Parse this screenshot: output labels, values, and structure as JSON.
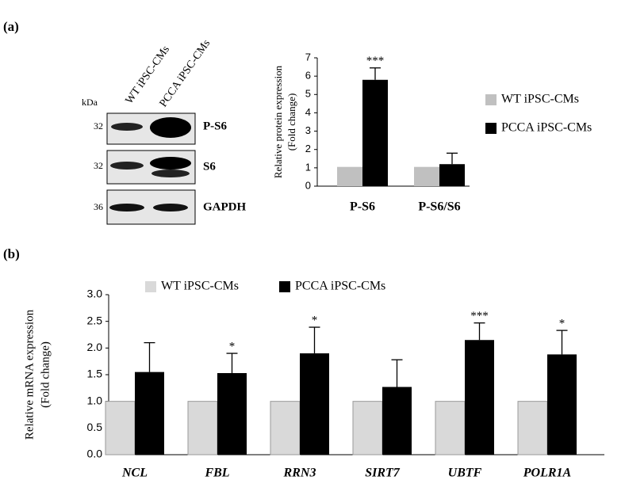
{
  "panel_labels": [
    "(a)",
    "(b)"
  ],
  "blot": {
    "columns": [
      "WT iPSC-CMs",
      "PCCA iPSC-CMs"
    ],
    "unit": "kDa",
    "rows": [
      {
        "kda": "32",
        "label": "P-S6"
      },
      {
        "kda": "32",
        "label": "S6"
      },
      {
        "kda": "36",
        "label": "GAPDH"
      }
    ]
  },
  "chart_data": [
    {
      "type": "bar",
      "y_label": [
        "Relative protein expression",
        "(Fold change)"
      ],
      "categories": [
        "P-S6",
        "P-S6/S6"
      ],
      "series": [
        {
          "name": "WT iPSC-CMs",
          "color": "#c0c0c0",
          "values": [
            1.05,
            1.05
          ]
        },
        {
          "name": "PCCA iPSC-CMs",
          "color": "#000000",
          "values": [
            5.8,
            1.2
          ],
          "errors": [
            0.65,
            0.6
          ],
          "significance": [
            "***",
            null
          ]
        }
      ],
      "ylim": [
        0,
        7
      ],
      "yticks": [
        0,
        1,
        2,
        3,
        4,
        5,
        6,
        7
      ],
      "legend": "right"
    },
    {
      "type": "bar",
      "y_label": [
        "Relative mRNA expression",
        "(Fold change)"
      ],
      "categories": [
        "NCL",
        "FBL",
        "RRN3",
        "SIRT7",
        "UBTF",
        "POLR1A"
      ],
      "series": [
        {
          "name": "WT iPSC-CMs",
          "color": "#d9d9d9",
          "values": [
            1.0,
            1.0,
            1.0,
            1.0,
            1.0,
            1.0
          ]
        },
        {
          "name": "PCCA iPSC-CMs",
          "color": "#000000",
          "values": [
            1.55,
            1.53,
            1.9,
            1.27,
            2.15,
            1.88
          ],
          "errors": [
            0.55,
            0.37,
            0.49,
            0.51,
            0.32,
            0.45
          ],
          "significance": [
            null,
            "*",
            "*",
            null,
            "***",
            "*"
          ]
        }
      ],
      "ylim": [
        0,
        3
      ],
      "yticks": [
        {
          "value": 0,
          "label": "0.0"
        },
        {
          "value": 0.5,
          "label": "0.5"
        },
        {
          "value": 1,
          "label": "1.0"
        },
        {
          "value": 1.5,
          "label": "1.5"
        },
        {
          "value": 2,
          "label": "2.0"
        },
        {
          "value": 2.5,
          "label": "2.5"
        },
        {
          "value": 3,
          "label": "3.0"
        }
      ],
      "legend": "top"
    }
  ]
}
